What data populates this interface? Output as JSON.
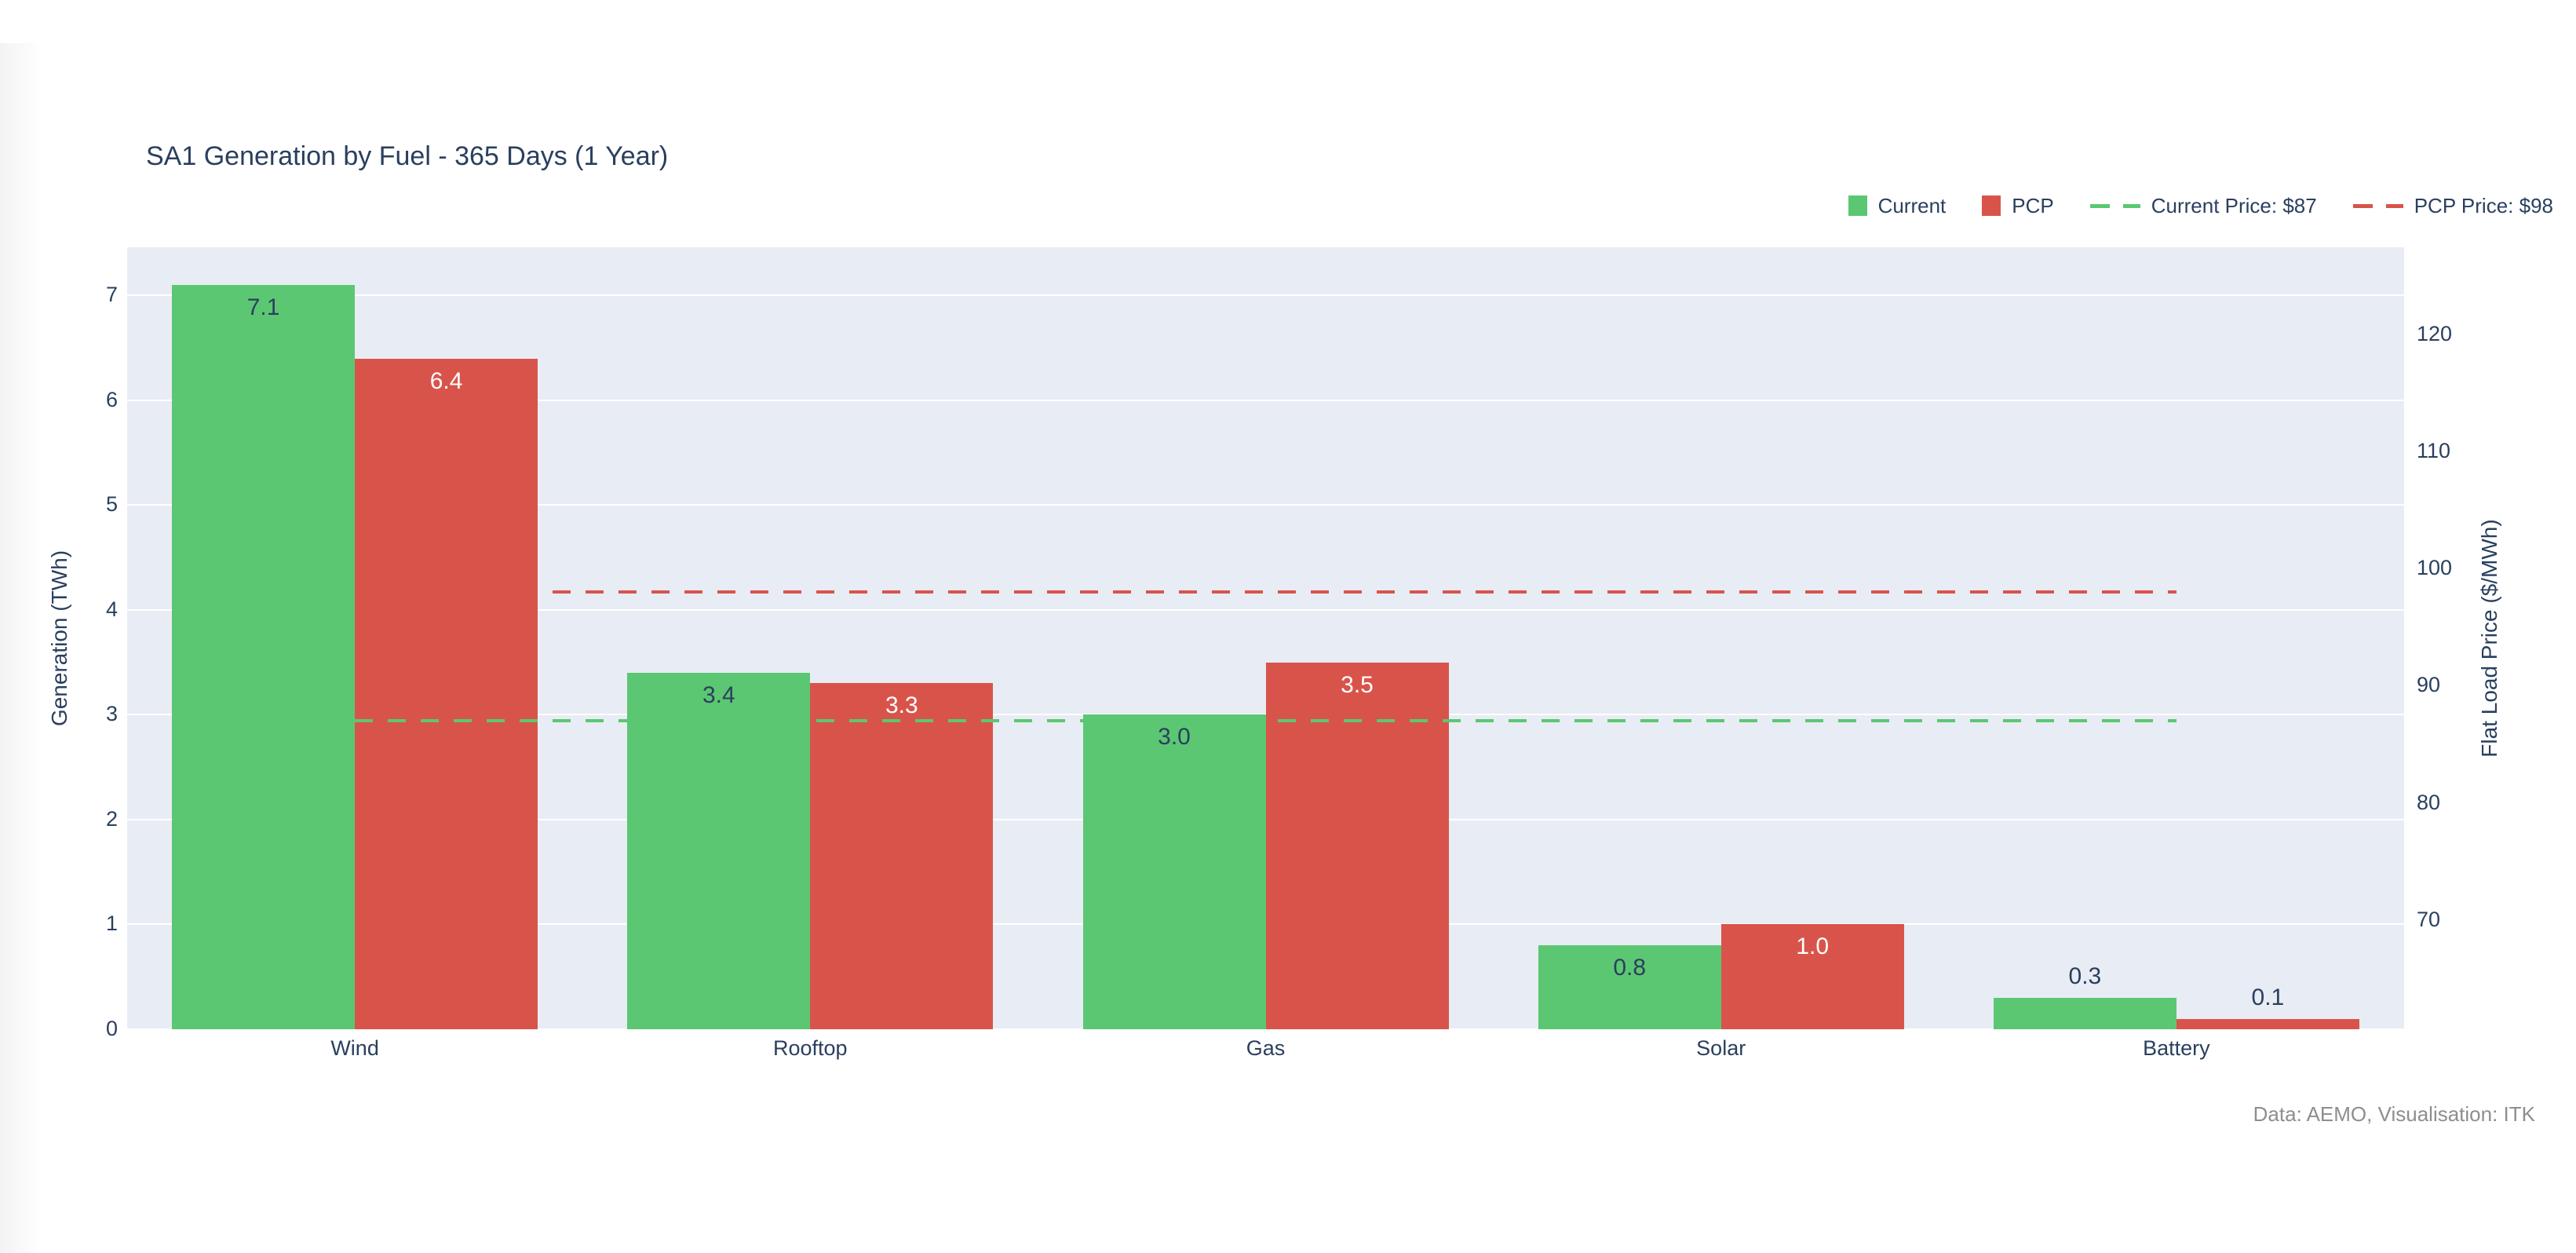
{
  "title": "SA1 Generation by Fuel - 365 Days (1 Year)",
  "legend": {
    "current": "Current",
    "pcp": "PCP",
    "current_price": "Current Price: $87",
    "pcp_price": "PCP Price: $98"
  },
  "footer": "Data: AEMO, Visualisation: ITK",
  "colors": {
    "bar_green": "#5cc772",
    "bar_red": "#d8544a",
    "text": "#2a3f5f",
    "muted": "#8e8e8e",
    "plot_bg": "#e8ecf4"
  },
  "chart_data": {
    "type": "bar",
    "title": "SA1 Generation by Fuel - 365 Days (1 Year)",
    "categories": [
      "Wind",
      "Rooftop",
      "Gas",
      "Solar",
      "Battery"
    ],
    "series": [
      {
        "name": "Current",
        "color": "#5cc772",
        "values": [
          7.1,
          3.4,
          3.0,
          0.8,
          0.3
        ],
        "labels": [
          "7.1",
          "3.4",
          "3.0",
          "0.8",
          "0.3"
        ]
      },
      {
        "name": "PCP",
        "color": "#d8544a",
        "values": [
          6.4,
          3.3,
          3.5,
          1.0,
          0.1
        ],
        "labels": [
          "6.4",
          "3.3",
          "3.5",
          "1.0",
          "0.1"
        ]
      }
    ],
    "lines": [
      {
        "name": "Current Price: $87",
        "value": 87,
        "color": "#5cc772"
      },
      {
        "name": "PCP Price: $98",
        "value": 98,
        "color": "#d8544a"
      }
    ],
    "xlabel": "",
    "ylabel": "Generation (TWh)",
    "y2label": "Flat Load Price ($/MWh)",
    "yticks": [
      0,
      1,
      2,
      3,
      4,
      5,
      6,
      7
    ],
    "y2ticks": [
      70,
      80,
      90,
      100,
      110,
      120
    ],
    "ylim": [
      0,
      7.46
    ],
    "y2lim": [
      60.7,
      127.4
    ],
    "grid": true,
    "legend_position": "top-right"
  }
}
